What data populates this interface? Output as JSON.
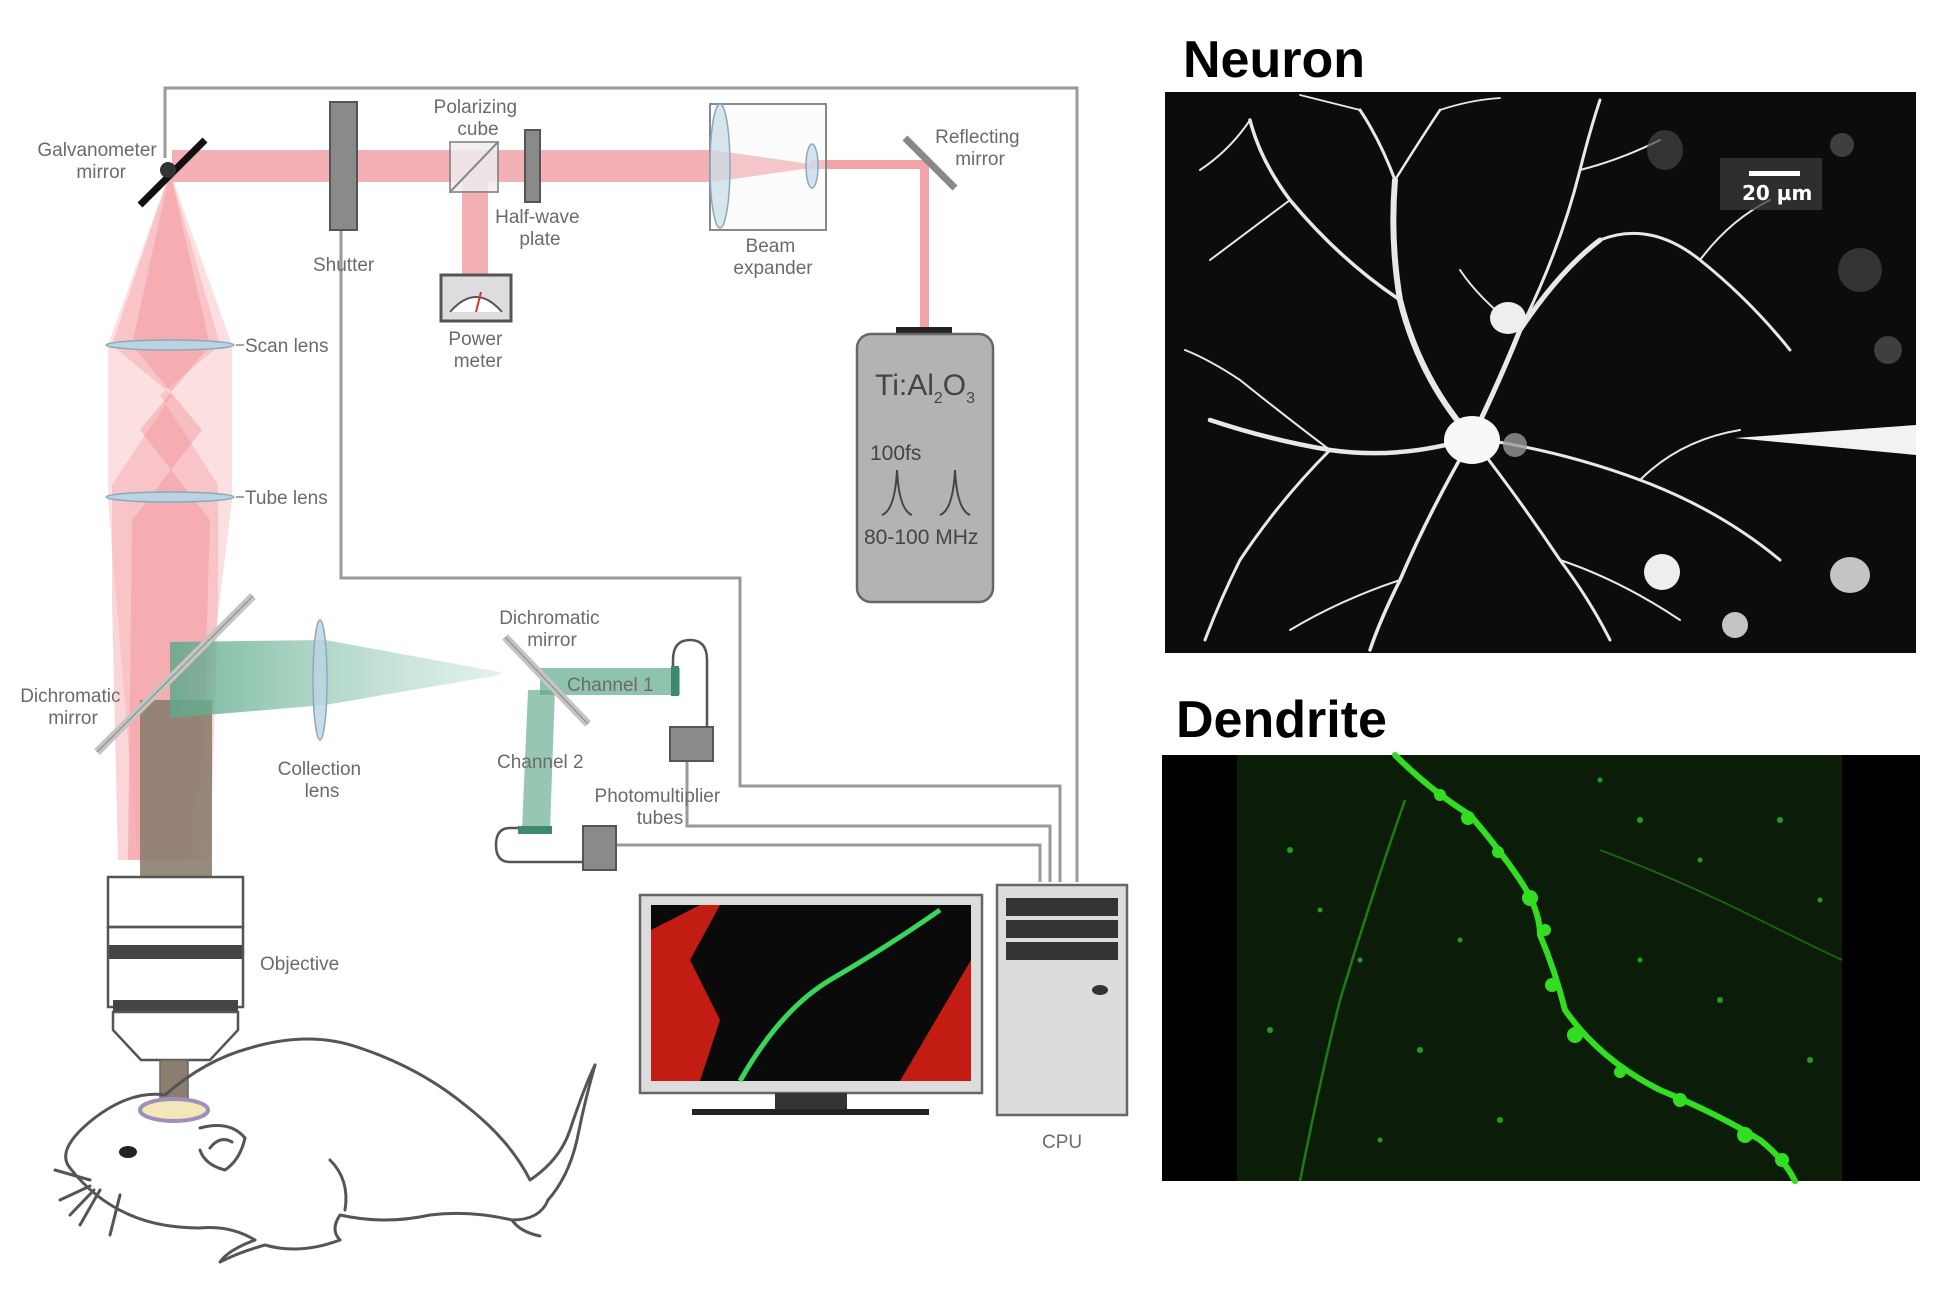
{
  "labels": {
    "galvanometer": [
      "Galvanometer",
      "mirror"
    ],
    "shutter": "Shutter",
    "polarizing_cube": [
      "Polarizing",
      "cube"
    ],
    "half_wave_plate": [
      "Half-wave",
      "plate"
    ],
    "power_meter": [
      "Power",
      "meter"
    ],
    "beam_expander": [
      "Beam",
      "expander"
    ],
    "reflecting_mirror": [
      "Reflecting",
      "mirror"
    ],
    "scan_lens": "Scan lens",
    "tube_lens": "Tube lens",
    "laser_name": "Ti:Al",
    "laser_sub2": "2",
    "laser_O": "O",
    "laser_sub3": "3",
    "pulse_width": "100fs",
    "rep_rate": "80-100 MHz",
    "dichromatic_mirror_1": [
      "Dichromatic",
      "mirror"
    ],
    "dichromatic_mirror_2": [
      "Dichromatic",
      "mirror"
    ],
    "channel_1": "Channel 1",
    "channel_2": "Channel 2",
    "collection_lens": [
      "Collection",
      "lens"
    ],
    "pmt": [
      "Photomultiplier",
      "tubes"
    ],
    "objective": "Objective",
    "cpu": "CPU"
  },
  "panels": {
    "neuron_title": "Neuron",
    "dendrite_title": "Dendrite",
    "scale_bar": "20 µm"
  },
  "colors": {
    "laser_beam": "#f2a3a8",
    "emission_beam": "#5fa98a",
    "dendrite_green": "#33dd22",
    "neuron_white": "#f4f4f4"
  }
}
